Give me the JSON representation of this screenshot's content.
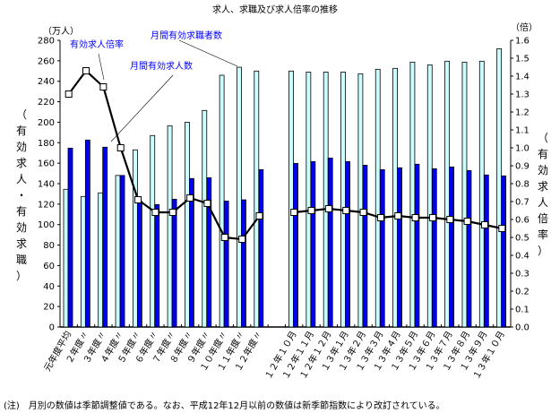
{
  "chart_data": {
    "type": "bar+line",
    "title": "求人、求職及び求人倍率の推移",
    "left_unit": "（万人）",
    "right_unit": "（倍）",
    "ylabel_left": "（有効求人・有効求職）",
    "ylabel_right": "（有効求人倍率）",
    "ylim_left": [
      0,
      280
    ],
    "ylim_right": [
      0,
      1.6
    ],
    "yticks_left": [
      "0",
      "20",
      "40",
      "60",
      "80",
      "100",
      "120",
      "140",
      "160",
      "180",
      "200",
      "220",
      "240",
      "260",
      "280"
    ],
    "yticks_right": [
      "0.0",
      "0.1",
      "0.2",
      "0.3",
      "0.4",
      "0.5",
      "0.6",
      "0.7",
      "0.8",
      "0.9",
      "1.0",
      "1.1",
      "1.2",
      "1.3",
      "1.4",
      "1.5",
      "1.6"
    ],
    "categories": [
      "元年度平均",
      "２年度〃",
      "３年度〃",
      "４年度〃",
      "５年度〃",
      "６年度〃",
      "７年度〃",
      "８年度〃",
      "９年度〃",
      "１０年度〃",
      "１１年度〃",
      "１２年度〃",
      "",
      "１２年１０月",
      "１２年１１月",
      "１２年１２月",
      "１３年１月",
      "１３年２月",
      "１３年３月",
      "１３年４月",
      "１３年５月",
      "１３年６月",
      "１３年７月",
      "１３年８月",
      "１３年９月",
      "１３年１０月"
    ],
    "series": [
      {
        "name": "月間有効求職者数",
        "axis": "left",
        "kind": "bar",
        "color": "#ccffff",
        "values": [
          134.5,
          127.5,
          131,
          148,
          173,
          187,
          196.6,
          200,
          211.5,
          245.9,
          253.7,
          250,
          null,
          250,
          249,
          249,
          249,
          247.3,
          251.7,
          252.6,
          258.7,
          256,
          259.6,
          258.7,
          259.6,
          271.8
        ]
      },
      {
        "name": "月間有効求人数",
        "axis": "left",
        "kind": "bar",
        "color": "#0000ee",
        "values": [
          174.7,
          182.6,
          175.6,
          148,
          123,
          119.6,
          124.8,
          145,
          145.8,
          123,
          124.2,
          153.7,
          null,
          159.8,
          161.6,
          165,
          161.6,
          158,
          153.7,
          155.5,
          159,
          154.6,
          156.3,
          152.8,
          148.5,
          147.6
        ]
      },
      {
        "name": "有効求人倍率",
        "axis": "right",
        "kind": "line",
        "color": "#000000",
        "values": [
          1.3,
          1.43,
          1.34,
          1.0,
          0.71,
          0.64,
          0.64,
          0.72,
          0.69,
          0.5,
          0.49,
          0.62,
          null,
          0.64,
          0.65,
          0.66,
          0.65,
          0.64,
          0.61,
          0.62,
          0.61,
          0.61,
          0.6,
          0.59,
          0.57,
          0.55
        ]
      }
    ],
    "grid": false,
    "legend": "callout labels with leader lines"
  },
  "footnote": "(注)　月別の数値は季節調整値である。なお、平成12年12月以前の数値は新季節指数により改訂されている。"
}
